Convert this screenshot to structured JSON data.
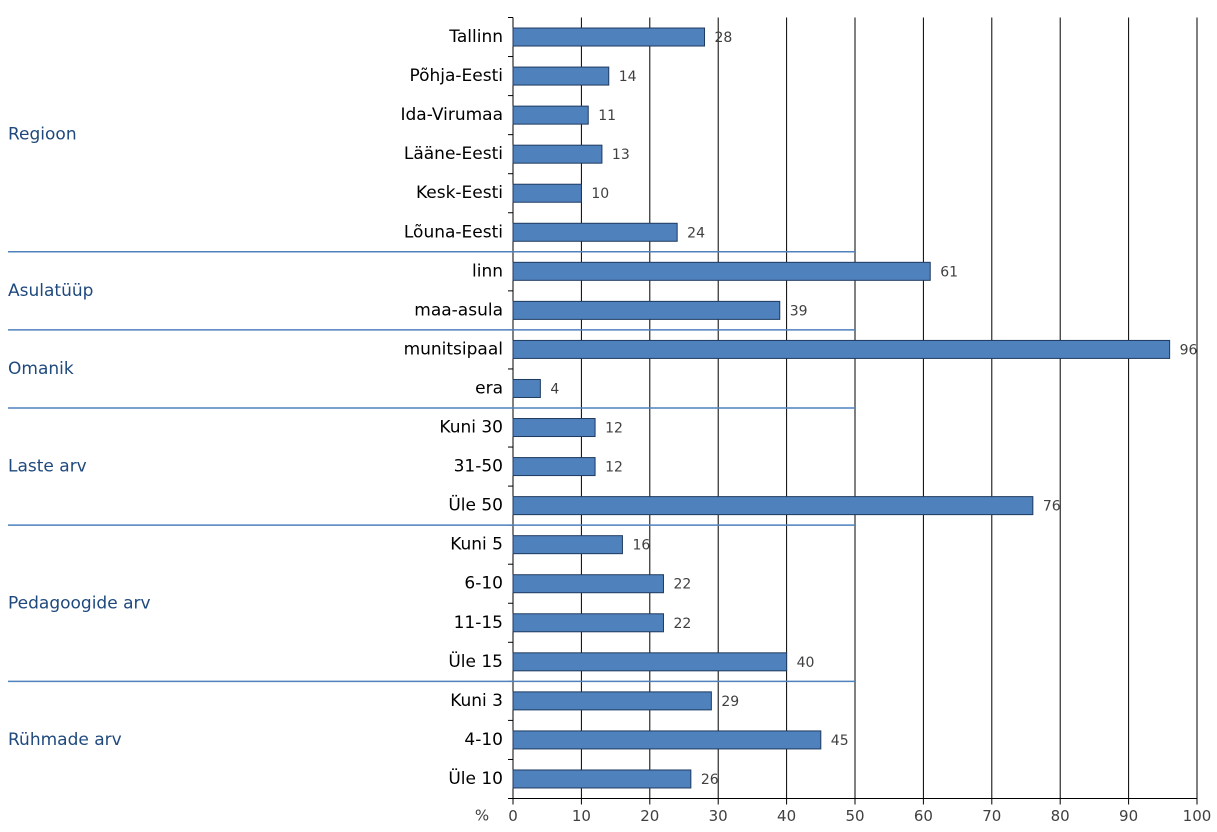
{
  "chart_data": {
    "type": "bar",
    "orientation": "horizontal",
    "color": "#4f81bd",
    "x_label": "%",
    "xlim": [
      0,
      100
    ],
    "xticks": [
      0,
      10,
      20,
      30,
      40,
      50,
      60,
      70,
      80,
      90,
      100
    ],
    "grid": true,
    "groups": [
      {
        "name": "Regioon",
        "categories": [
          "Tallinn",
          "Põhja-Eesti",
          "Ida-Virumaa",
          "Lääne-Eesti",
          "Kesk-Eesti",
          "Lõuna-Eesti"
        ],
        "values": [
          28,
          14,
          11,
          13,
          10,
          24
        ]
      },
      {
        "name": "Asulatüüp",
        "categories": [
          "linn",
          "maa-asula"
        ],
        "values": [
          61,
          39
        ]
      },
      {
        "name": "Omanik",
        "categories": [
          "munitsipaal",
          "era"
        ],
        "values": [
          96,
          4
        ]
      },
      {
        "name": "Laste arv",
        "categories": [
          "Kuni 30",
          "31-50",
          "Üle 50"
        ],
        "values": [
          12,
          12,
          76
        ]
      },
      {
        "name": "Pedagoogide arv",
        "categories": [
          "Kuni 5",
          "6-10",
          "11-15",
          "Üle 15"
        ],
        "values": [
          16,
          22,
          22,
          40
        ]
      },
      {
        "name": "Rühmade arv",
        "categories": [
          "Kuni 3",
          "4-10",
          "Üle 10"
        ],
        "values": [
          29,
          45,
          26
        ]
      }
    ]
  }
}
